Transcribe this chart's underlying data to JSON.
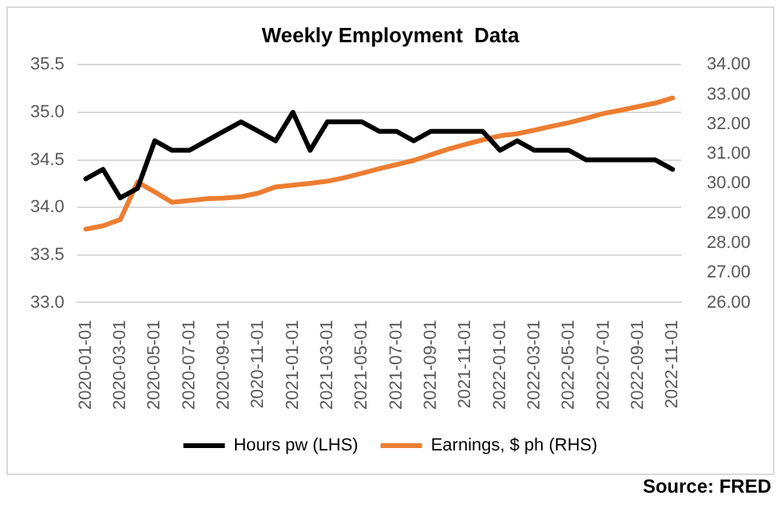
{
  "chart_data": {
    "type": "line",
    "title": "Weekly Employment  Data",
    "categories": [
      "2020-01-01",
      null,
      "2020-03-01",
      null,
      "2020-05-01",
      null,
      "2020-07-01",
      null,
      "2020-09-01",
      null,
      "2020-11-01",
      null,
      "2021-01-01",
      null,
      "2021-03-01",
      null,
      "2021-05-01",
      null,
      "2021-07-01",
      null,
      "2021-09-01",
      null,
      "2021-11-01",
      null,
      "2022-01-01",
      null,
      "2022-03-01",
      null,
      "2022-05-01",
      null,
      "2022-07-01",
      null,
      "2022-09-01",
      null,
      "2022-11-01"
    ],
    "series": [
      {
        "name": "Hours pw (LHS)",
        "color": "#000000",
        "values": [
          34.3,
          34.4,
          34.1,
          34.2,
          34.7,
          34.6,
          34.6,
          34.7,
          34.8,
          34.9,
          34.8,
          34.7,
          35.0,
          34.6,
          34.9,
          34.9,
          34.9,
          34.8,
          34.8,
          34.7,
          34.8,
          34.8,
          34.8,
          34.8,
          34.6,
          34.7,
          34.6,
          34.6,
          34.6,
          34.5,
          34.5,
          34.5,
          34.5,
          34.5,
          34.4
        ]
      },
      {
        "name": "Earnings, $ ph (RHS)",
        "color": "#ed7d31",
        "axis": "y2",
        "values": [
          28.47,
          28.58,
          28.79,
          30.05,
          29.72,
          29.37,
          29.43,
          29.49,
          29.51,
          29.56,
          29.68,
          29.89,
          29.95,
          30.01,
          30.08,
          30.2,
          30.35,
          30.5,
          30.64,
          30.78,
          30.97,
          31.16,
          31.32,
          31.47,
          31.61,
          31.68,
          31.8,
          31.93,
          32.05,
          32.2,
          32.36,
          32.47,
          32.59,
          32.71,
          32.88
        ]
      }
    ],
    "ylim": [
      33,
      35.5
    ],
    "yticks": [
      {
        "value": 33,
        "label": "33.0"
      },
      {
        "value": 33.5,
        "label": "33.5"
      },
      {
        "value": 34,
        "label": "34.0"
      },
      {
        "value": 34.5,
        "label": "34.5"
      },
      {
        "value": 35,
        "label": "35.0"
      },
      {
        "value": 35.5,
        "label": "35.5"
      }
    ],
    "y2lim": [
      26,
      34
    ],
    "y2ticks": [
      {
        "value": 26,
        "label": "26.00"
      },
      {
        "value": 27,
        "label": "27.00"
      },
      {
        "value": 28,
        "label": "28.00"
      },
      {
        "value": 29,
        "label": "29.00"
      },
      {
        "value": 30,
        "label": "30.00"
      },
      {
        "value": 31,
        "label": "31.00"
      },
      {
        "value": 32,
        "label": "32.00"
      },
      {
        "value": 33,
        "label": "33.00"
      },
      {
        "value": 34,
        "label": "34.00"
      }
    ],
    "grid": "y",
    "legend": "bottom",
    "marker": "none",
    "line_style": "solid",
    "annotations": [
      "Source: FRED"
    ]
  }
}
